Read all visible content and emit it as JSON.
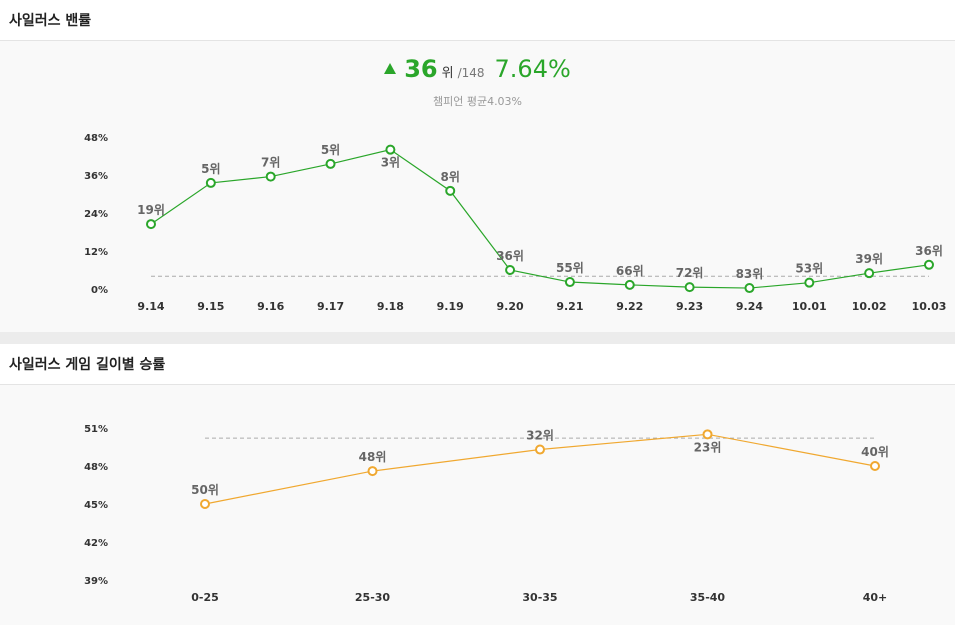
{
  "panel1": {
    "title": "사일러스 밴률",
    "summary": {
      "rank": "36",
      "rank_unit": "위",
      "total": "/148",
      "rate": "7.64%",
      "average_text": "챔피언 평균4.03%"
    }
  },
  "panel2": {
    "title": "사일러스 게임 길이별 승률"
  },
  "colors": {
    "ban_line": "#2aa62a",
    "winrate_line": "#f0a830",
    "avg_line": "#aaaaaa",
    "up_arrow": "#2aa62a"
  },
  "chart_data": [
    {
      "type": "line",
      "categories": [
        "9.14",
        "9.15",
        "9.16",
        "9.17",
        "9.18",
        "9.19",
        "9.20",
        "9.21",
        "9.22",
        "9.23",
        "9.24",
        "10.01",
        "10.02",
        "10.03"
      ],
      "series": [
        {
          "values": [
            20.5,
            33.5,
            35.5,
            39.5,
            44.0,
            31.0,
            6.0,
            2.2,
            1.3,
            0.6,
            0.3,
            2.0,
            5.0,
            7.64
          ]
        }
      ],
      "rank_labels": [
        "19위",
        "5위",
        "7위",
        "5위",
        "3위",
        "8위",
        "36위",
        "55위",
        "66위",
        "72위",
        "83위",
        "53위",
        "39위",
        "36위"
      ],
      "label_below": [
        false,
        false,
        false,
        false,
        true,
        false,
        false,
        false,
        false,
        false,
        false,
        false,
        false,
        false
      ],
      "average": 4.03,
      "yticks": [
        0,
        12,
        24,
        36,
        48
      ],
      "ytick_labels": [
        "0%",
        "12%",
        "24%",
        "36%",
        "48%"
      ],
      "ylim": [
        0,
        48
      ]
    },
    {
      "type": "line",
      "categories": [
        "0-25",
        "25-30",
        "30-35",
        "35-40",
        "40+"
      ],
      "series": [
        {
          "values": [
            45.0,
            47.6,
            49.3,
            50.5,
            48.0
          ]
        }
      ],
      "rank_labels": [
        "50위",
        "48위",
        "32위",
        "23위",
        "40위"
      ],
      "label_below": [
        false,
        false,
        false,
        true,
        false
      ],
      "average": 50.2,
      "yticks": [
        39,
        42,
        45,
        48,
        51
      ],
      "ytick_labels": [
        "39%",
        "42%",
        "45%",
        "48%",
        "51%"
      ],
      "ylim": [
        39,
        51
      ]
    }
  ]
}
